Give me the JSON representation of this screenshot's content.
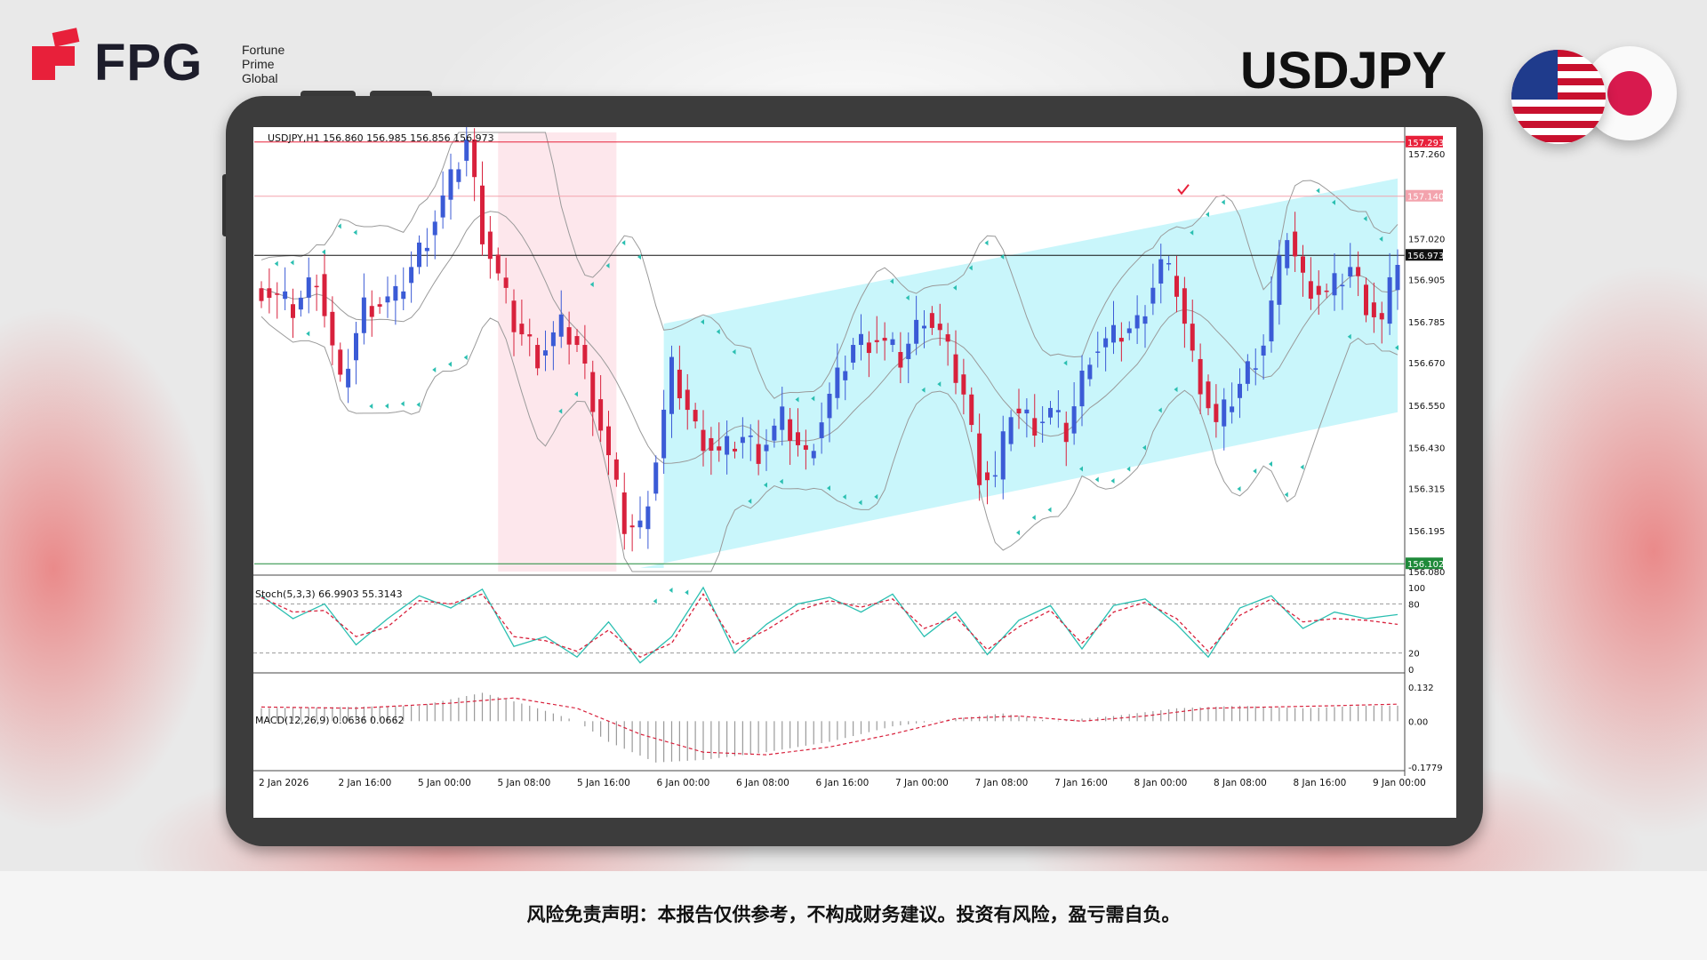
{
  "brand": {
    "name": "FPG",
    "sub_lines": [
      "Fortune",
      "Prime",
      "Global"
    ]
  },
  "header": {
    "pair": "USDJPY"
  },
  "footer": {
    "disclaimer": "风险免责声明：本报告仅供参考，不构成财务建议。投资有风险，盈亏需自负。"
  },
  "colors": {
    "accent": "#e8203a",
    "up": "#3b5bd6",
    "down": "#d8213c",
    "channel": "#c9f6fb",
    "zone": "#fde7ec",
    "signal": "#2bbfb1"
  },
  "chart_data": [
    {
      "type": "candlestick",
      "title": "USDJPY,H1  156.860 156.985 156.856 156.973",
      "ylim": [
        156.08,
        157.32
      ],
      "y_ticks": [
        "157.260",
        "157.020",
        "156.905",
        "156.785",
        "156.670",
        "156.550",
        "156.430",
        "156.315",
        "156.195",
        "156.080"
      ],
      "x_ticks": [
        "2 Jan 2026",
        "2 Jan 16:00",
        "5 Jan 00:00",
        "5 Jan 08:00",
        "5 Jan 16:00",
        "6 Jan 00:00",
        "6 Jan 08:00",
        "6 Jan 16:00",
        "7 Jan 00:00",
        "7 Jan 08:00",
        "7 Jan 16:00",
        "8 Jan 00:00",
        "8 Jan 08:00",
        "8 Jan 16:00",
        "9 Jan 00:00"
      ],
      "price_tags": [
        {
          "value": 157.293,
          "label": "157.293",
          "color": "#e8203a"
        },
        {
          "value": 157.14,
          "label": "157.140",
          "color": "#f3a3ad"
        },
        {
          "value": 156.973,
          "label": "156.973",
          "color": "#111111"
        },
        {
          "value": 156.102,
          "label": "156.102",
          "color": "#1f8a3a"
        }
      ],
      "close_anchors": [
        [
          0,
          156.88
        ],
        [
          4,
          156.82
        ],
        [
          7,
          156.92
        ],
        [
          10,
          156.6
        ],
        [
          13,
          156.83
        ],
        [
          17,
          156.85
        ],
        [
          21,
          157.03
        ],
        [
          24,
          157.18
        ],
        [
          26,
          157.3
        ],
        [
          28,
          157.04
        ],
        [
          32,
          156.78
        ],
        [
          35,
          156.69
        ],
        [
          38,
          156.77
        ],
        [
          40,
          156.72
        ],
        [
          43,
          156.49
        ],
        [
          46,
          156.21
        ],
        [
          48,
          156.2
        ],
        [
          50,
          156.4
        ],
        [
          52,
          156.65
        ],
        [
          55,
          156.48
        ],
        [
          58,
          156.41
        ],
        [
          61,
          156.46
        ],
        [
          63,
          156.42
        ],
        [
          66,
          156.51
        ],
        [
          69,
          156.4
        ],
        [
          72,
          156.57
        ],
        [
          75,
          156.72
        ],
        [
          78,
          156.74
        ],
        [
          81,
          156.68
        ],
        [
          84,
          156.81
        ],
        [
          86,
          156.75
        ],
        [
          89,
          156.58
        ],
        [
          91,
          156.36
        ],
        [
          93,
          156.34
        ],
        [
          95,
          156.54
        ],
        [
          98,
          156.5
        ],
        [
          100,
          156.53
        ],
        [
          102,
          156.47
        ],
        [
          105,
          156.7
        ],
        [
          108,
          156.74
        ],
        [
          111,
          156.78
        ],
        [
          114,
          156.95
        ],
        [
          116,
          156.88
        ],
        [
          118,
          156.68
        ],
        [
          121,
          156.49
        ],
        [
          124,
          156.61
        ],
        [
          127,
          156.73
        ],
        [
          130,
          157.04
        ],
        [
          132,
          156.9
        ],
        [
          135,
          156.86
        ],
        [
          138,
          156.94
        ],
        [
          140,
          156.84
        ],
        [
          142,
          156.78
        ],
        [
          144,
          156.97
        ]
      ]
    },
    {
      "type": "line",
      "title": "Stoch(5,3,3) 66.9903 55.3143",
      "ylim": [
        0,
        100
      ],
      "y_ticks": [
        "100",
        "80",
        "20",
        "0"
      ],
      "levels": [
        80,
        20
      ],
      "series": [
        {
          "values": [
            [
              0,
              90
            ],
            [
              4,
              62
            ],
            [
              8,
              80
            ],
            [
              12,
              30
            ],
            [
              16,
              62
            ],
            [
              20,
              90
            ],
            [
              24,
              75
            ],
            [
              28,
              98
            ],
            [
              32,
              28
            ],
            [
              36,
              40
            ],
            [
              40,
              15
            ],
            [
              44,
              58
            ],
            [
              48,
              8
            ],
            [
              52,
              40
            ],
            [
              56,
              100
            ],
            [
              60,
              20
            ],
            [
              64,
              55
            ],
            [
              68,
              80
            ],
            [
              72,
              88
            ],
            [
              76,
              70
            ],
            [
              80,
              92
            ],
            [
              84,
              40
            ],
            [
              88,
              70
            ],
            [
              92,
              18
            ],
            [
              96,
              60
            ],
            [
              100,
              78
            ],
            [
              104,
              25
            ],
            [
              108,
              78
            ],
            [
              112,
              86
            ],
            [
              116,
              55
            ],
            [
              120,
              15
            ],
            [
              124,
              75
            ],
            [
              128,
              90
            ],
            [
              132,
              50
            ],
            [
              136,
              70
            ],
            [
              140,
              62
            ],
            [
              144,
              67
            ]
          ]
        },
        {
          "values": [
            [
              0,
              88
            ],
            [
              4,
              70
            ],
            [
              8,
              72
            ],
            [
              12,
              40
            ],
            [
              16,
              52
            ],
            [
              20,
              84
            ],
            [
              24,
              80
            ],
            [
              28,
              92
            ],
            [
              32,
              40
            ],
            [
              36,
              35
            ],
            [
              40,
              22
            ],
            [
              44,
              48
            ],
            [
              48,
              15
            ],
            [
              52,
              32
            ],
            [
              56,
              92
            ],
            [
              60,
              30
            ],
            [
              64,
              48
            ],
            [
              68,
              72
            ],
            [
              72,
              84
            ],
            [
              76,
              76
            ],
            [
              80,
              86
            ],
            [
              84,
              50
            ],
            [
              88,
              64
            ],
            [
              92,
              24
            ],
            [
              96,
              52
            ],
            [
              100,
              72
            ],
            [
              104,
              32
            ],
            [
              108,
              70
            ],
            [
              112,
              82
            ],
            [
              116,
              62
            ],
            [
              120,
              22
            ],
            [
              124,
              66
            ],
            [
              128,
              86
            ],
            [
              132,
              58
            ],
            [
              136,
              62
            ],
            [
              140,
              60
            ],
            [
              144,
              55
            ]
          ]
        }
      ]
    },
    {
      "type": "bar",
      "title": "MACD(12,26,9) 0.0636 0.0662",
      "ylim": [
        -0.1779,
        0.132
      ],
      "y_ticks": [
        "0.132",
        "0.00",
        "-0.1779"
      ],
      "series": [
        {
          "values": [
            [
              0,
              0.05
            ],
            [
              10,
              0.055
            ],
            [
              20,
              0.06
            ],
            [
              28,
              0.11
            ],
            [
              34,
              0.06
            ],
            [
              40,
              0.0
            ],
            [
              44,
              -0.08
            ],
            [
              50,
              -0.16
            ],
            [
              56,
              -0.15
            ],
            [
              64,
              -0.12
            ],
            [
              72,
              -0.08
            ],
            [
              80,
              -0.02
            ],
            [
              88,
              0.01
            ],
            [
              94,
              0.03
            ],
            [
              100,
              0.0
            ],
            [
              108,
              0.02
            ],
            [
              116,
              0.05
            ],
            [
              124,
              0.06
            ],
            [
              132,
              0.05
            ],
            [
              140,
              0.06
            ],
            [
              144,
              0.06
            ]
          ]
        },
        {
          "values": [
            [
              0,
              0.055
            ],
            [
              12,
              0.05
            ],
            [
              24,
              0.07
            ],
            [
              32,
              0.09
            ],
            [
              40,
              0.05
            ],
            [
              48,
              -0.05
            ],
            [
              56,
              -0.12
            ],
            [
              64,
              -0.13
            ],
            [
              72,
              -0.1
            ],
            [
              80,
              -0.05
            ],
            [
              88,
              0.01
            ],
            [
              96,
              0.02
            ],
            [
              104,
              0.0
            ],
            [
              112,
              0.02
            ],
            [
              120,
              0.05
            ],
            [
              128,
              0.055
            ],
            [
              136,
              0.06
            ],
            [
              144,
              0.066
            ]
          ]
        }
      ]
    }
  ]
}
